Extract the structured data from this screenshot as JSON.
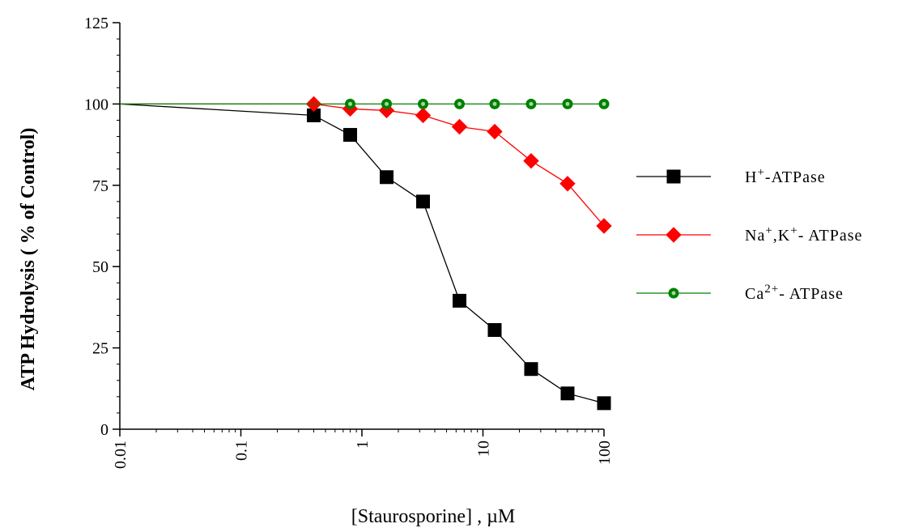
{
  "chart_data": {
    "type": "line",
    "xscale": "log",
    "xlim": [
      0.01,
      100
    ],
    "ylim": [
      0,
      125
    ],
    "grid": false,
    "legend_position": "right",
    "xlabel": "[Staurosporine] , µM",
    "ylabel": "ATP Hydrolysis ( % of Control)",
    "x_ticks": [
      "0.01",
      "0.1",
      "1",
      "10",
      "100"
    ],
    "y_ticks": [
      "0",
      "25",
      "50",
      "75",
      "100",
      "125"
    ],
    "series": [
      {
        "name": "H+-ATPase",
        "legend": {
          "base": "H",
          "sup": "+",
          "rest": "-ATPase"
        },
        "color": "#000000",
        "marker": "square",
        "x": [
          0.01,
          0.4,
          0.8,
          1.6,
          3.2,
          6.4,
          12.5,
          25,
          50,
          100
        ],
        "y": [
          100,
          96.5,
          90.5,
          77.5,
          70,
          39.5,
          30.5,
          18.5,
          11,
          8
        ]
      },
      {
        "name": "Na+,K+- ATPase",
        "legend": {
          "base": "Na",
          "sup": "+",
          "mid": ",K",
          "sup2": "+",
          "rest": "- ATPase"
        },
        "color": "#ff0000",
        "marker": "diamond",
        "x": [
          0.01,
          0.4,
          0.8,
          1.6,
          3.2,
          6.4,
          12.5,
          25,
          50,
          100
        ],
        "y": [
          100,
          100,
          98.5,
          98,
          96.5,
          93,
          91.5,
          82.5,
          75.5,
          62.5
        ]
      },
      {
        "name": "Ca2+- ATPase",
        "legend": {
          "base": "Ca",
          "sup": "2+",
          "rest": "- ATPase"
        },
        "color": "#008000",
        "marker": "circle",
        "x": [
          0.01,
          0.8,
          1.6,
          3.2,
          6.4,
          12.5,
          25,
          50,
          100
        ],
        "y": [
          100,
          100,
          100,
          100,
          100,
          100,
          100,
          100,
          100
        ]
      }
    ]
  }
}
